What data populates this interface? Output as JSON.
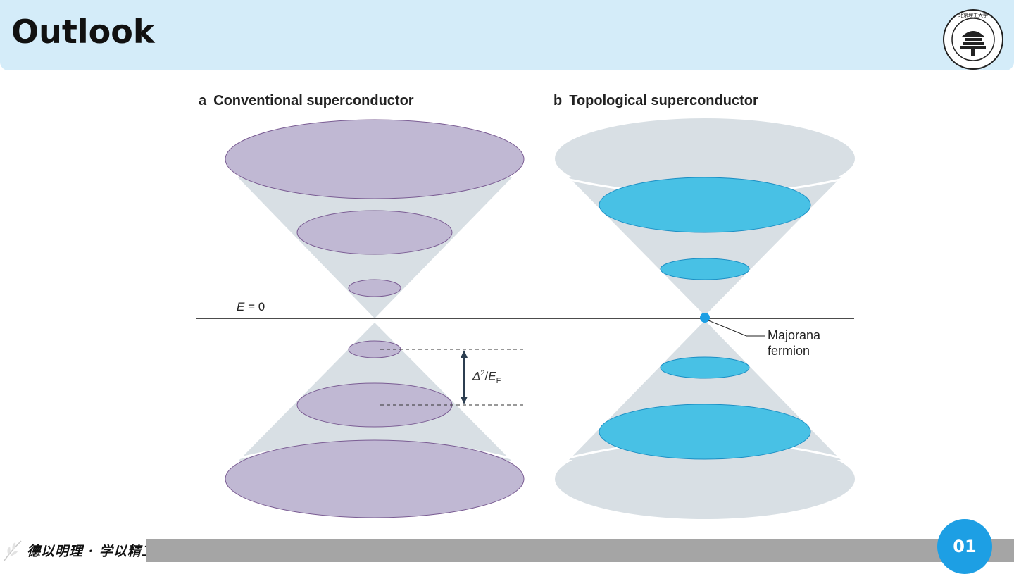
{
  "header": {
    "title": "Outlook",
    "logo_text": "BEIJING INSTITUTE OF TECHNOLOGY"
  },
  "panels": {
    "a": {
      "letter": "a",
      "title": "Conventional superconductor"
    },
    "b": {
      "letter": "b",
      "title": "Topological superconductor"
    }
  },
  "labels": {
    "e_var": "E",
    "e_eq": " = 0",
    "gap_delta": "Δ",
    "gap_sup": "2",
    "gap_slash": "/",
    "gap_e": "E",
    "gap_sub": "F",
    "majorana_line1": "Majorana",
    "majorana_line2": "fermion"
  },
  "footer": {
    "motto": "德以明理 · 学以精工",
    "page_number": "01"
  },
  "colors": {
    "header_bg": "#d4ecf9",
    "cone_fill": "#d8dfe4",
    "conventional_ellipse": "#c0b8d3",
    "conventional_stroke": "#7a5c93",
    "topological_ellipse": "#48c1e5",
    "topological_stroke": "#1c8fc4",
    "badge": "#1d9fe4"
  }
}
